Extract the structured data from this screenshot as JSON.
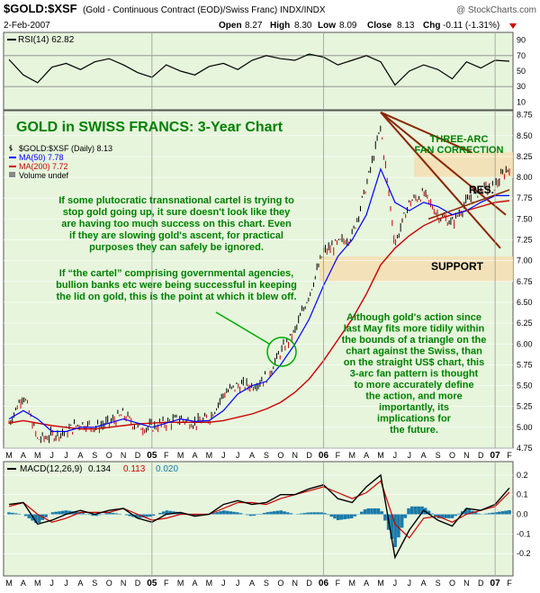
{
  "header": {
    "symbol": "$GOLD:$XSF",
    "description": "(Gold - Continuous Contract (EOD)/Swiss Franc) INDX/INDX",
    "watermark": "@ StockCharts.com",
    "date": "2-Feb-2007",
    "open_label": "Open",
    "open": "8.27",
    "high_label": "High",
    "high": "8.30",
    "low_label": "Low",
    "low": "8.09",
    "close_label": "Close",
    "close": "8.13",
    "chg_label": "Chg",
    "chg": "-0.11 (-1.31%)"
  },
  "rsi_panel": {
    "label": "RSI(14) 62.82",
    "ticks": [
      "90",
      "70",
      "50",
      "30",
      "10"
    ]
  },
  "main_panel": {
    "title": "GOLD in SWISS FRANCS: 3-Year Chart",
    "legend": [
      {
        "text": "$GOLD:$XSF (Daily) 8.13",
        "color": "#000000"
      },
      {
        "text": "MA(50) 7.78",
        "color": "#0000ff"
      },
      {
        "text": "MA(200) 7.72",
        "color": "#cc0000"
      },
      {
        "text": "Volume undef",
        "color": "#000000"
      }
    ],
    "annotations": {
      "fan": "THREE-ARC\nFAN CORRECTION",
      "res": "RES.",
      "support": "SUPPORT",
      "cartel1": "If some plutocratic transnational cartel is trying to\nstop gold going up, it sure doesn't look like they\nare having too much success on this chart. Even\nif they are slowing gold's ascent, for practical\npurposes they can safely be ignored.",
      "cartel2": "If “the cartel” comprising governmental agencies,\nbullion banks etc were being successful in keeping\nthe lid on gold, this is the point at which it blew off.",
      "action": "Although gold's action since\nlast May fits more tidily within\nthe bounds of a triangle on the\nchart against the Swiss, than\non the straight US$ chart, this\n3-arc fan pattern is thought\nto more accurately define\nthe action, and more\nimportantly, its\nimplications for\nthe future."
    },
    "price_ticks": [
      "8.75",
      "8.50",
      "8.25",
      "8.00",
      "7.75",
      "7.50",
      "7.25",
      "7.00",
      "6.75",
      "6.50",
      "6.25",
      "6.00",
      "5.75",
      "5.50",
      "5.25",
      "5.00",
      "4.75"
    ]
  },
  "macd_panel": {
    "label": "MACD(12,26,9)",
    "macd": "0.134",
    "signal": "0.113",
    "hist": "0.020",
    "ticks": [
      "0.2",
      "0.1",
      "0.0",
      "-0.1",
      "-0.2"
    ]
  },
  "x_axis": {
    "labels": [
      "M",
      "A",
      "M",
      "J",
      "J",
      "A",
      "S",
      "O",
      "N",
      "D",
      "05",
      "F",
      "M",
      "A",
      "M",
      "J",
      "J",
      "A",
      "S",
      "O",
      "N",
      "D",
      "06",
      "F",
      "M",
      "A",
      "M",
      "J",
      "J",
      "A",
      "S",
      "O",
      "N",
      "D",
      "07",
      "F"
    ]
  },
  "colors": {
    "panel_bg": "#e6f5dc",
    "price_up": "#000000",
    "price_down": "#cc0000",
    "ma50": "#0000ff",
    "ma200": "#cc0000",
    "annotation": "#008000",
    "fan_line": "#8b2500",
    "zone": "#f5deb3"
  },
  "chart_data": [
    {
      "type": "line",
      "title": "RSI(14) 62.82",
      "ylim": [
        0,
        100
      ],
      "x": [
        "2004-03",
        "2004-04",
        "2004-05",
        "2004-06",
        "2004-07",
        "2004-08",
        "2004-09",
        "2004-10",
        "2004-11",
        "2004-12",
        "2005-01",
        "2005-02",
        "2005-03",
        "2005-04",
        "2005-05",
        "2005-06",
        "2005-07",
        "2005-08",
        "2005-09",
        "2005-10",
        "2005-11",
        "2005-12",
        "2006-01",
        "2006-02",
        "2006-03",
        "2006-04",
        "2006-05",
        "2006-06",
        "2006-07",
        "2006-08",
        "2006-09",
        "2006-10",
        "2006-11",
        "2006-12",
        "2007-01",
        "2007-02"
      ],
      "values": [
        65,
        45,
        35,
        55,
        60,
        52,
        62,
        66,
        58,
        48,
        42,
        58,
        50,
        45,
        56,
        60,
        52,
        64,
        70,
        66,
        64,
        72,
        68,
        58,
        64,
        70,
        62,
        32,
        50,
        58,
        52,
        40,
        62,
        54,
        64,
        62.82
      ],
      "reference_lines": [
        70,
        30
      ]
    },
    {
      "type": "line",
      "title": "$GOLD:$XSF (Daily) 8.13",
      "ylim": [
        4.75,
        8.8
      ],
      "x": [
        "2004-03",
        "2004-04",
        "2004-05",
        "2004-06",
        "2004-07",
        "2004-08",
        "2004-09",
        "2004-10",
        "2004-11",
        "2004-12",
        "2005-01",
        "2005-02",
        "2005-03",
        "2005-04",
        "2005-05",
        "2005-06",
        "2005-07",
        "2005-08",
        "2005-09",
        "2005-10",
        "2005-11",
        "2005-12",
        "2006-01",
        "2006-02",
        "2006-03",
        "2006-04",
        "2006-05",
        "2006-06",
        "2006-07",
        "2006-08",
        "2006-09",
        "2006-10",
        "2006-11",
        "2006-12",
        "2007-01",
        "2007-02"
      ],
      "series": [
        {
          "name": "$GOLD:$XSF (Daily) 8.13",
          "values": [
            5.05,
            5.4,
            4.85,
            4.9,
            4.95,
            5.05,
            5.0,
            5.05,
            5.15,
            5.0,
            5.0,
            5.05,
            5.1,
            5.05,
            5.1,
            5.4,
            5.5,
            5.5,
            5.6,
            5.9,
            6.15,
            6.6,
            7.1,
            7.2,
            7.3,
            7.9,
            8.6,
            7.2,
            7.7,
            7.8,
            7.55,
            7.45,
            7.7,
            7.85,
            7.9,
            8.13
          ]
        },
        {
          "name": "MA(50) 7.78",
          "values": [
            5.1,
            5.2,
            5.1,
            4.95,
            4.95,
            5.0,
            5.0,
            5.05,
            5.1,
            5.05,
            5.0,
            5.05,
            5.1,
            5.07,
            5.08,
            5.2,
            5.4,
            5.5,
            5.55,
            5.75,
            6.0,
            6.3,
            6.7,
            7.05,
            7.25,
            7.55,
            8.1,
            7.7,
            7.6,
            7.7,
            7.65,
            7.55,
            7.6,
            7.7,
            7.78,
            7.78
          ]
        },
        {
          "name": "MA(200) 7.72",
          "values": [
            5.05,
            5.08,
            5.05,
            5.02,
            5.0,
            4.98,
            4.98,
            5.0,
            5.02,
            5.04,
            5.05,
            5.06,
            5.06,
            5.06,
            5.06,
            5.08,
            5.12,
            5.16,
            5.22,
            5.3,
            5.42,
            5.58,
            5.8,
            6.05,
            6.3,
            6.6,
            6.95,
            7.15,
            7.3,
            7.42,
            7.5,
            7.55,
            7.6,
            7.65,
            7.7,
            7.72
          ]
        }
      ],
      "zones": [
        {
          "label": "RES.",
          "y": [
            8.0,
            8.3
          ]
        },
        {
          "label": "SUPPORT",
          "y": [
            6.75,
            7.05
          ]
        }
      ]
    },
    {
      "type": "line",
      "title": "MACD(12,26,9) 0.134, 0.113, 0.020",
      "ylim": [
        -0.3,
        0.25
      ],
      "x": [
        "2004-03",
        "2004-04",
        "2004-05",
        "2004-06",
        "2004-07",
        "2004-08",
        "2004-09",
        "2004-10",
        "2004-11",
        "2004-12",
        "2005-01",
        "2005-02",
        "2005-03",
        "2005-04",
        "2005-05",
        "2005-06",
        "2005-07",
        "2005-08",
        "2005-09",
        "2005-10",
        "2005-11",
        "2005-12",
        "2006-01",
        "2006-02",
        "2006-03",
        "2006-04",
        "2006-05",
        "2006-06",
        "2006-07",
        "2006-08",
        "2006-09",
        "2006-10",
        "2006-11",
        "2006-12",
        "2007-01",
        "2007-02"
      ],
      "series": [
        {
          "name": "MACD",
          "values": [
            0.05,
            0.06,
            -0.05,
            -0.03,
            0.0,
            0.02,
            0.0,
            0.02,
            0.03,
            -0.02,
            -0.04,
            0.0,
            0.01,
            -0.01,
            0.0,
            0.05,
            0.07,
            0.05,
            0.06,
            0.1,
            0.1,
            0.13,
            0.15,
            0.08,
            0.06,
            0.14,
            0.2,
            -0.22,
            -0.08,
            0.02,
            -0.03,
            -0.06,
            0.03,
            0.02,
            0.05,
            0.134
          ]
        },
        {
          "name": "Signal",
          "values": [
            0.04,
            0.06,
            0.0,
            -0.04,
            -0.02,
            0.01,
            0.01,
            0.01,
            0.03,
            0.0,
            -0.03,
            -0.02,
            0.0,
            0.0,
            0.0,
            0.03,
            0.06,
            0.06,
            0.05,
            0.08,
            0.1,
            0.12,
            0.14,
            0.11,
            0.08,
            0.11,
            0.17,
            -0.05,
            -0.12,
            -0.02,
            -0.01,
            -0.04,
            0.0,
            0.02,
            0.04,
            0.113
          ]
        }
      ]
    }
  ]
}
